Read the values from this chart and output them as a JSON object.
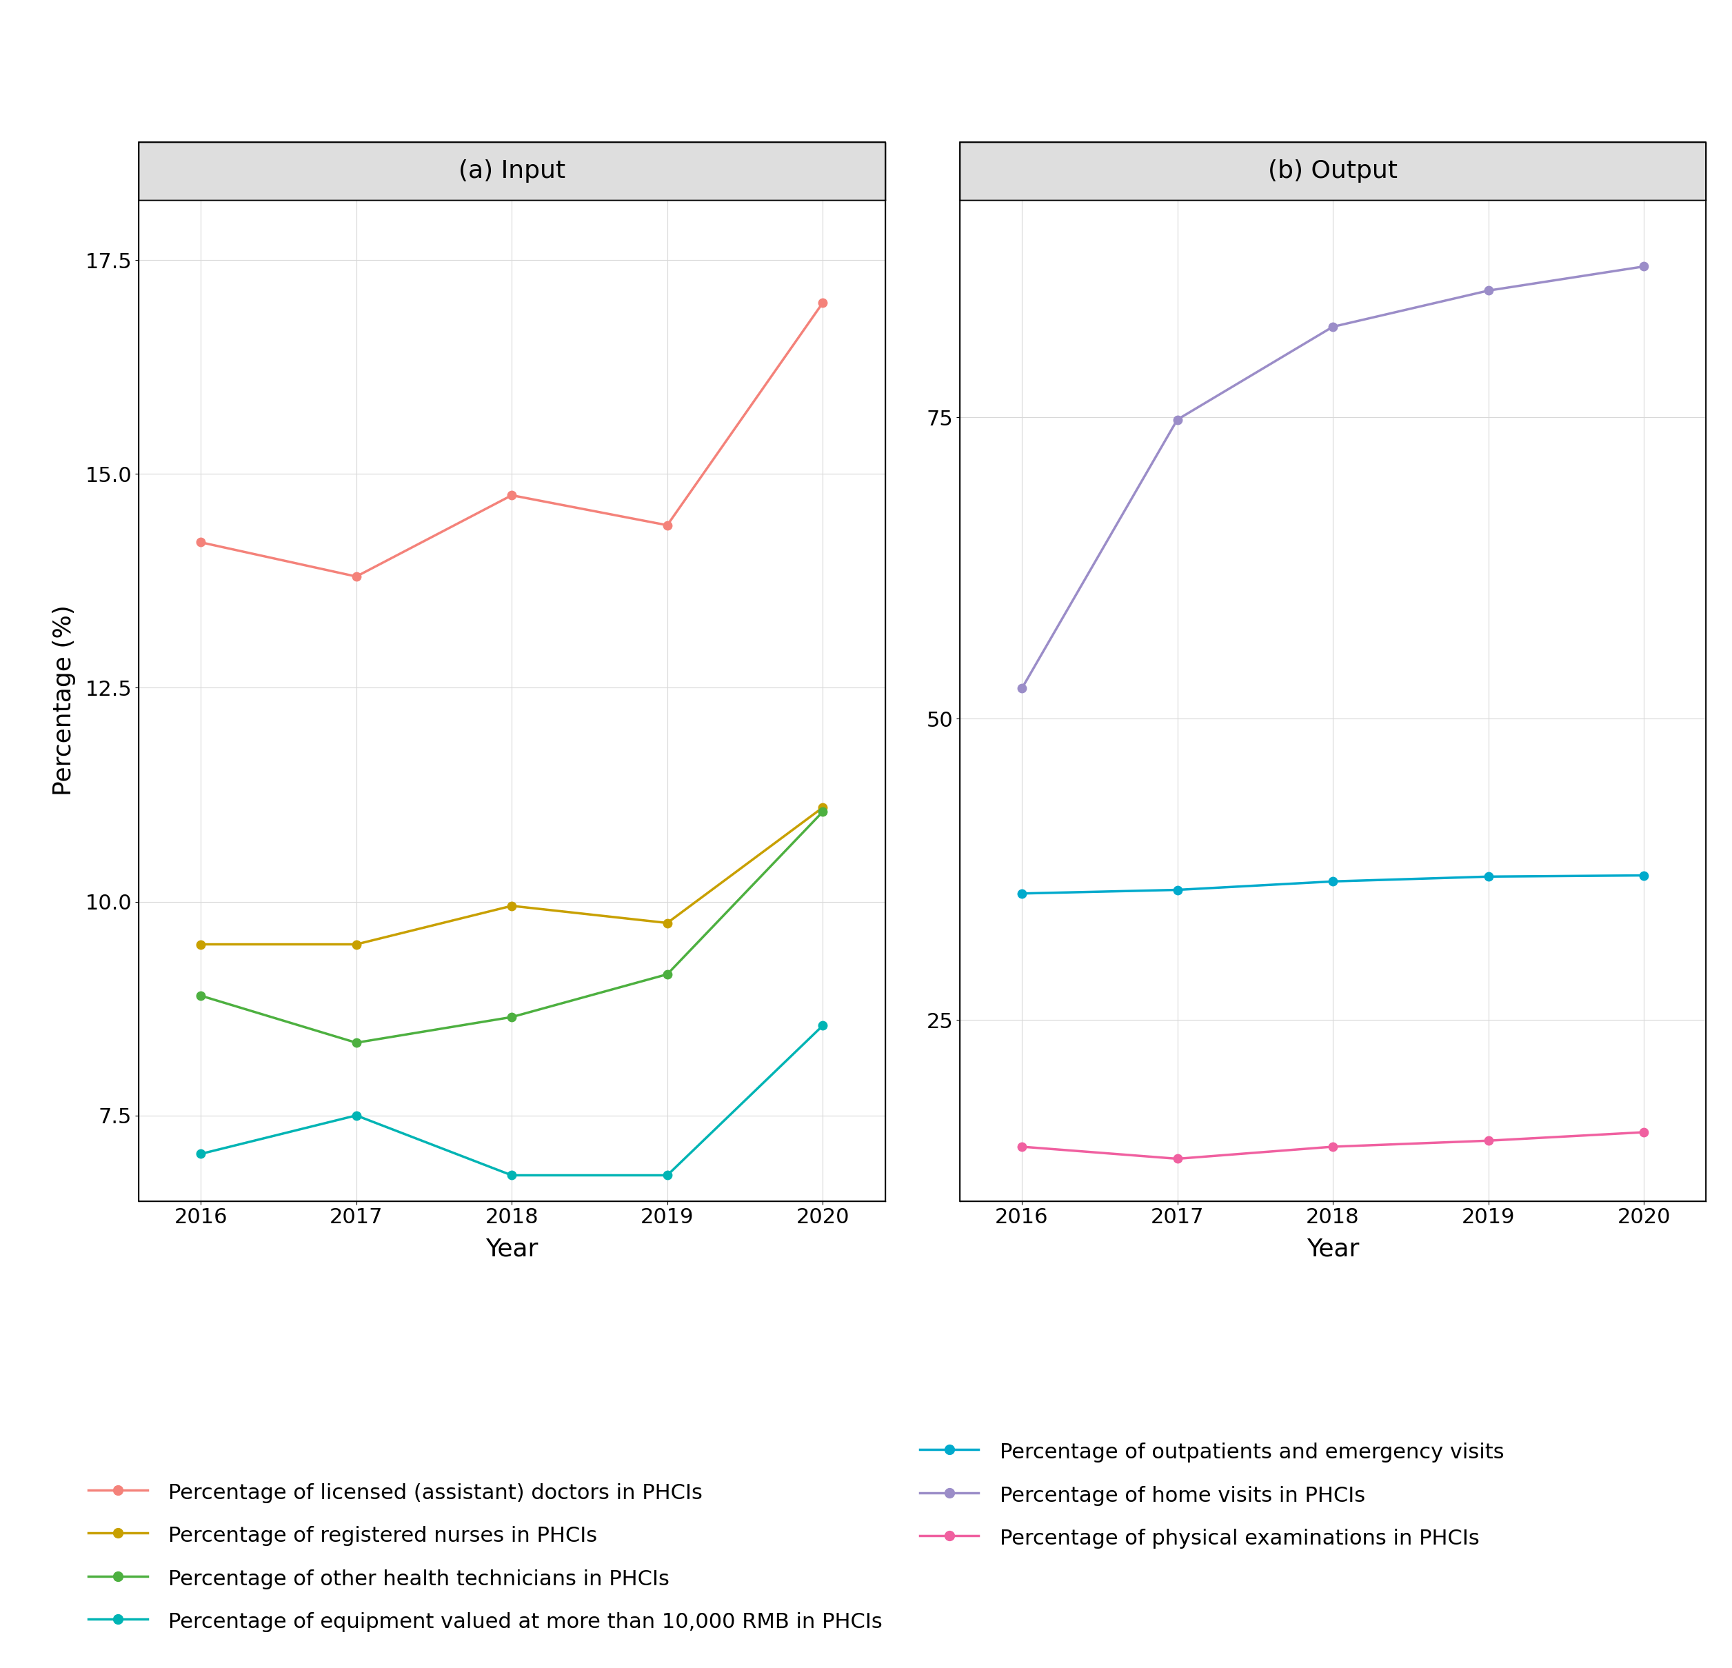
{
  "years": [
    2016,
    2017,
    2018,
    2019,
    2020
  ],
  "input": {
    "licensed_doctors": [
      14.2,
      13.8,
      14.75,
      14.4,
      17.0
    ],
    "registered_nurses": [
      9.5,
      9.5,
      9.95,
      9.75,
      11.1
    ],
    "other_technicians": [
      8.9,
      8.35,
      8.65,
      9.15,
      11.05
    ],
    "equipment": [
      7.05,
      7.5,
      6.8,
      6.8,
      8.55
    ]
  },
  "output": {
    "outpatients": [
      35.5,
      35.8,
      36.5,
      36.9,
      37.0
    ],
    "home_visits": [
      52.5,
      74.8,
      82.5,
      85.5,
      87.5
    ],
    "physical_exams": [
      14.5,
      13.5,
      14.5,
      15.0,
      15.7
    ]
  },
  "input_ylim": [
    6.5,
    18.2
  ],
  "input_yticks": [
    7.5,
    10.0,
    12.5,
    15.0,
    17.5
  ],
  "output_ylim": [
    10,
    93
  ],
  "output_yticks": [
    25,
    50,
    75
  ],
  "colors": {
    "licensed_doctors": "#F4827A",
    "registered_nurses": "#C8A000",
    "other_technicians": "#4DB040",
    "equipment": "#00B4B4",
    "outpatients": "#00AACC",
    "home_visits": "#9B8DC8",
    "physical_exams": "#F060A0"
  },
  "legend": {
    "licensed_doctors": "Percentage of licensed (assistant) doctors in PHCIs",
    "registered_nurses": "Percentage of registered nurses in PHCIs",
    "other_technicians": "Percentage of other health technicians in PHCIs",
    "equipment": "Percentage of equipment valued at more than 10,000 RMB in PHCIs",
    "outpatients": "Percentage of outpatients and emergency visits",
    "home_visits": "Percentage of home visits in PHCIs",
    "physical_exams": "Percentage of physical examinations in PHCIs"
  },
  "title_a": "(a) Input",
  "title_b": "(b) Output",
  "xlabel": "Year",
  "ylabel": "Percentage (%)",
  "background_color": "#FFFFFF",
  "panel_bg": "#FFFFFF",
  "grid_color": "#D8D8D8",
  "strip_bg": "#DEDEDE",
  "strip_text_size": 26,
  "axis_text_size": 22,
  "axis_title_size": 26,
  "legend_text_size": 22,
  "linewidth": 2.5,
  "markersize": 9
}
